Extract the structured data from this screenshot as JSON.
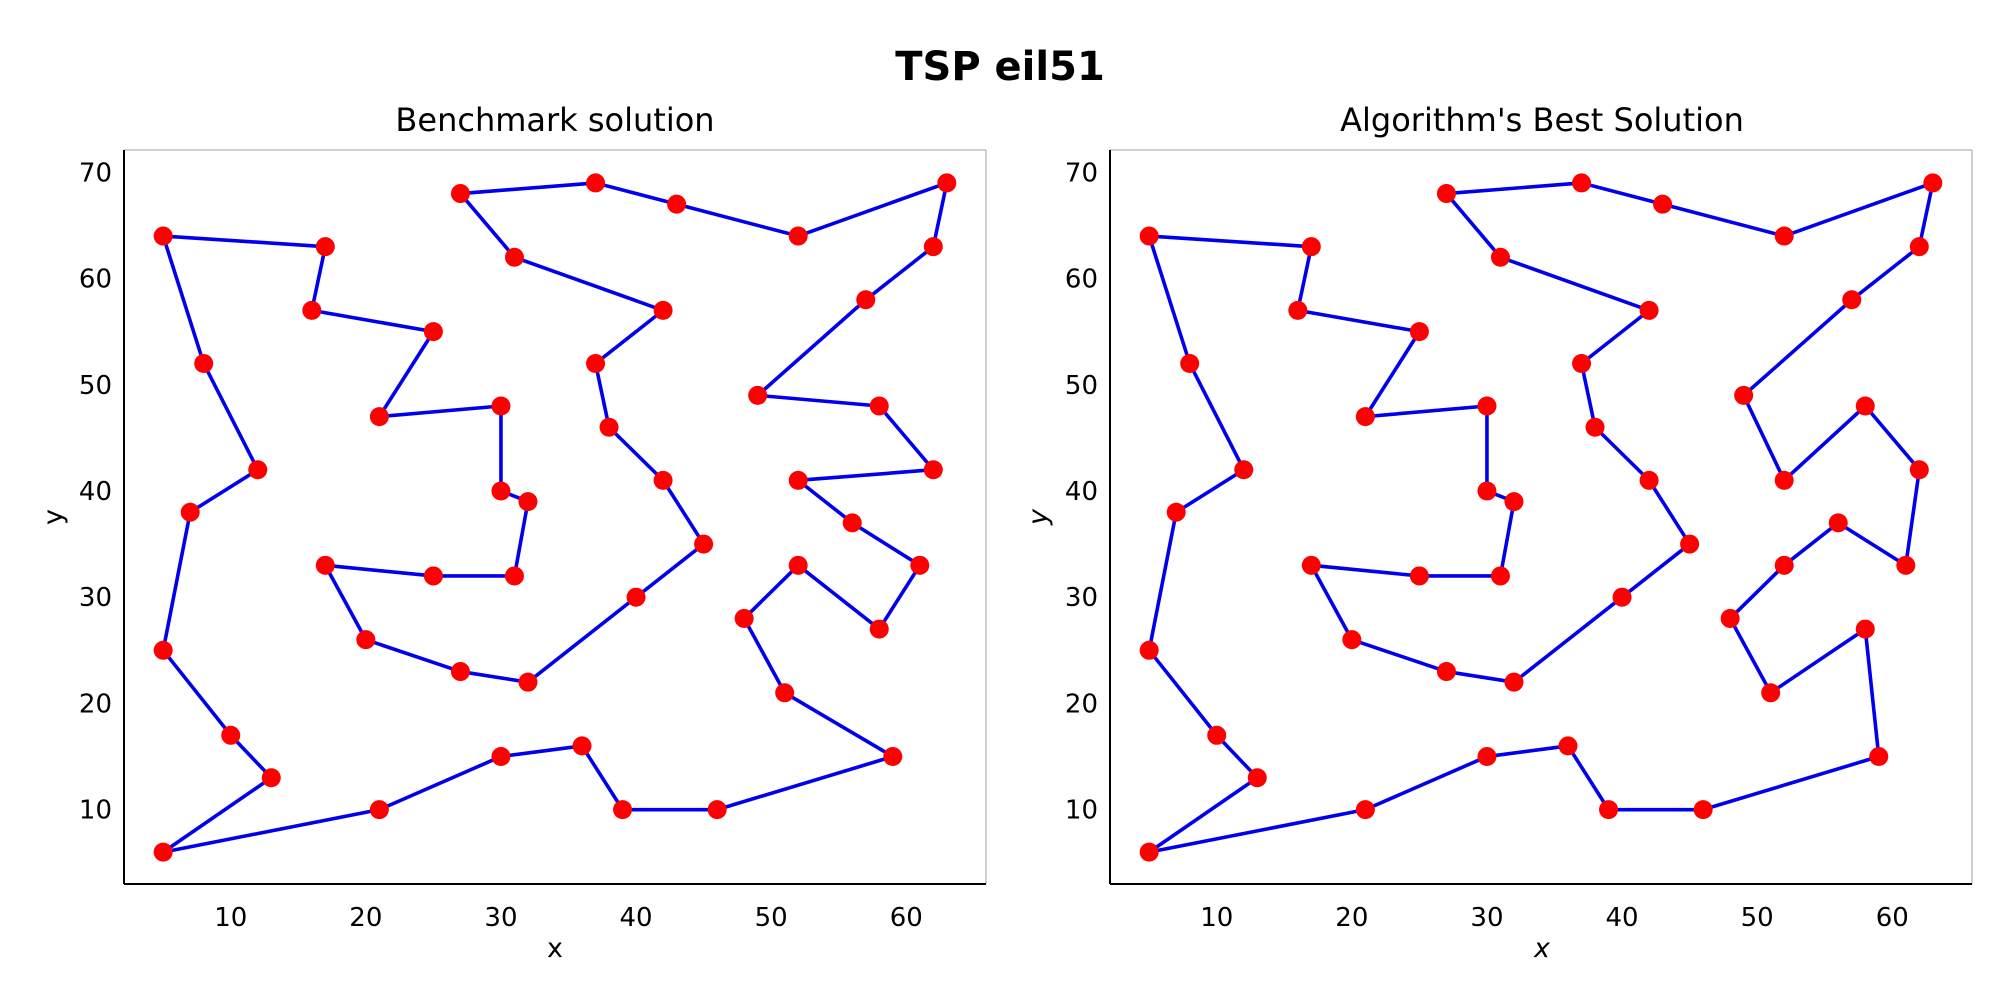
{
  "figure": {
    "title": "TSP eil51"
  },
  "chart_data": [
    {
      "type": "line",
      "title": "Benchmark solution",
      "xlabel": "x",
      "ylabel": "y",
      "xlim": [
        2.1,
        65.9
      ],
      "ylim": [
        3.0,
        72.1
      ],
      "xticks": [
        10,
        20,
        30,
        40,
        50,
        60
      ],
      "yticks": [
        10,
        20,
        30,
        40,
        50,
        60,
        70
      ],
      "grid": false,
      "line_color": "#0000ee",
      "marker_color": "#ff0000",
      "spines": {
        "top": "#bfbfbf",
        "right": "#bfbfbf",
        "bottom": "#000000",
        "left": "#000000"
      },
      "tour": [
        [
          5,
          64
        ],
        [
          17,
          63
        ],
        [
          16,
          57
        ],
        [
          25,
          55
        ],
        [
          21,
          47
        ],
        [
          30,
          48
        ],
        [
          30,
          40
        ],
        [
          32,
          39
        ],
        [
          31,
          32
        ],
        [
          25,
          32
        ],
        [
          17,
          33
        ],
        [
          20,
          26
        ],
        [
          27,
          23
        ],
        [
          32,
          22
        ],
        [
          40,
          30
        ],
        [
          45,
          35
        ],
        [
          42,
          41
        ],
        [
          38,
          46
        ],
        [
          37,
          52
        ],
        [
          42,
          57
        ],
        [
          31,
          62
        ],
        [
          27,
          68
        ],
        [
          37,
          69
        ],
        [
          43,
          67
        ],
        [
          52,
          64
        ],
        [
          63,
          69
        ],
        [
          62,
          63
        ],
        [
          57,
          58
        ],
        [
          49,
          49
        ],
        [
          58,
          48
        ],
        [
          62,
          42
        ],
        [
          52,
          41
        ],
        [
          56,
          37
        ],
        [
          61,
          33
        ],
        [
          58,
          27
        ],
        [
          52,
          33
        ],
        [
          48,
          28
        ],
        [
          51,
          21
        ],
        [
          59,
          15
        ],
        [
          46,
          10
        ],
        [
          39,
          10
        ],
        [
          36,
          16
        ],
        [
          30,
          15
        ],
        [
          21,
          10
        ],
        [
          5,
          6
        ],
        [
          13,
          13
        ],
        [
          10,
          17
        ],
        [
          5,
          25
        ],
        [
          7,
          38
        ],
        [
          12,
          42
        ],
        [
          8,
          52
        ],
        [
          5,
          64
        ]
      ]
    },
    {
      "type": "line",
      "title": "Algorithm's Best Solution",
      "xlabel": "x",
      "ylabel": "y",
      "xlim": [
        2.1,
        65.9
      ],
      "ylim": [
        3.0,
        72.1
      ],
      "xticks": [
        10,
        20,
        30,
        40,
        50,
        60
      ],
      "yticks": [
        10,
        20,
        30,
        40,
        50,
        60,
        70
      ],
      "grid": false,
      "line_color": "#0000ee",
      "marker_color": "#ff0000",
      "spines": {
        "top": "#bfbfbf",
        "right": "#bfbfbf",
        "bottom": "#000000",
        "left": "#000000"
      },
      "tour": [
        [
          5,
          64
        ],
        [
          17,
          63
        ],
        [
          16,
          57
        ],
        [
          25,
          55
        ],
        [
          21,
          47
        ],
        [
          30,
          48
        ],
        [
          30,
          40
        ],
        [
          32,
          39
        ],
        [
          31,
          32
        ],
        [
          25,
          32
        ],
        [
          17,
          33
        ],
        [
          20,
          26
        ],
        [
          27,
          23
        ],
        [
          32,
          22
        ],
        [
          40,
          30
        ],
        [
          45,
          35
        ],
        [
          42,
          41
        ],
        [
          38,
          46
        ],
        [
          37,
          52
        ],
        [
          42,
          57
        ],
        [
          31,
          62
        ],
        [
          27,
          68
        ],
        [
          37,
          69
        ],
        [
          43,
          67
        ],
        [
          52,
          64
        ],
        [
          63,
          69
        ],
        [
          62,
          63
        ],
        [
          57,
          58
        ],
        [
          49,
          49
        ],
        [
          52,
          41
        ],
        [
          58,
          48
        ],
        [
          62,
          42
        ],
        [
          61,
          33
        ],
        [
          56,
          37
        ],
        [
          52,
          33
        ],
        [
          48,
          28
        ],
        [
          51,
          21
        ],
        [
          58,
          27
        ],
        [
          59,
          15
        ],
        [
          46,
          10
        ],
        [
          39,
          10
        ],
        [
          36,
          16
        ],
        [
          30,
          15
        ],
        [
          21,
          10
        ],
        [
          5,
          6
        ],
        [
          13,
          13
        ],
        [
          10,
          17
        ],
        [
          5,
          25
        ],
        [
          7,
          38
        ],
        [
          12,
          42
        ],
        [
          8,
          52
        ],
        [
          5,
          64
        ]
      ]
    }
  ]
}
